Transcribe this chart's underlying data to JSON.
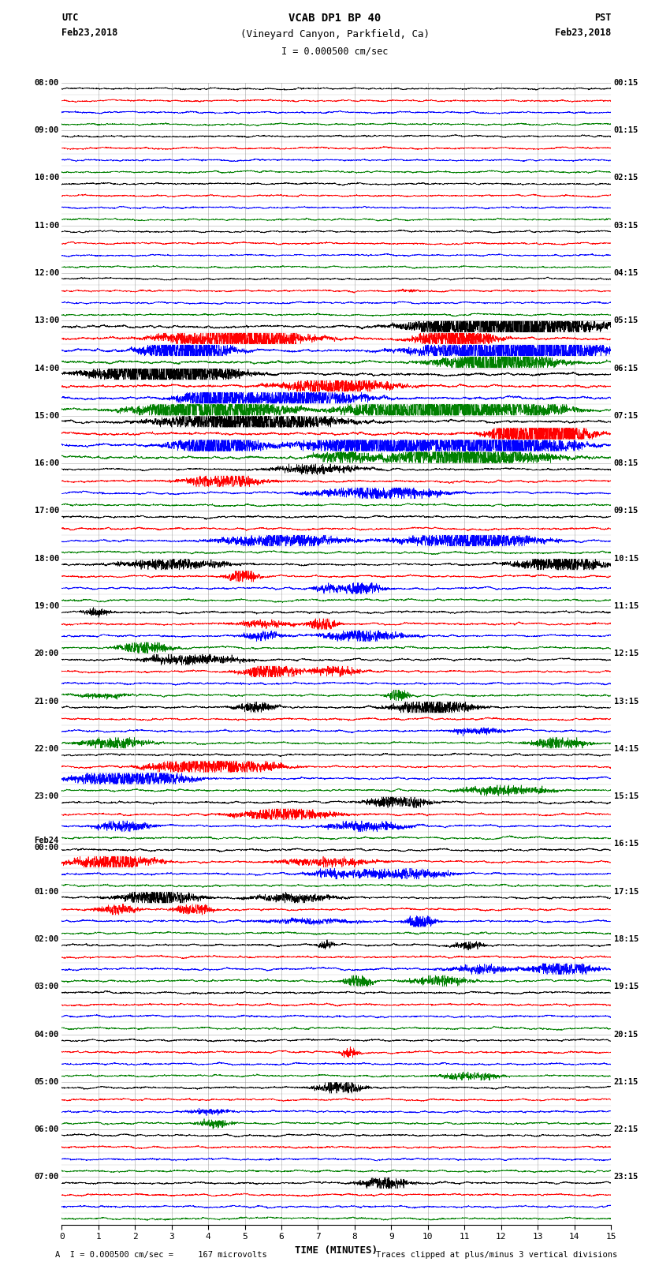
{
  "title1": "VCAB DP1 BP 40",
  "title2": "(Vineyard Canyon, Parkfield, Ca)",
  "scale_label": "I = 0.000500 cm/sec",
  "utc_label": "UTC",
  "pst_label": "PST",
  "date_left": "Feb23,2018",
  "date_right": "Feb23,2018",
  "xlabel": "TIME (MINUTES)",
  "bottom_left": "A  I = 0.000500 cm/sec =     167 microvolts",
  "bottom_right": "Traces clipped at plus/minus 3 vertical divisions",
  "x_min": 0,
  "x_max": 15,
  "colors": [
    "black",
    "red",
    "blue",
    "green"
  ],
  "bg_color": "#ffffff",
  "left_times_labels": [
    "08:00",
    "09:00",
    "10:00",
    "11:00",
    "12:00",
    "13:00",
    "14:00",
    "15:00",
    "16:00",
    "17:00",
    "18:00",
    "19:00",
    "20:00",
    "21:00",
    "22:00",
    "23:00",
    "Feb24\n00:00",
    "01:00",
    "02:00",
    "03:00",
    "04:00",
    "05:00",
    "06:00",
    "07:00"
  ],
  "right_times_labels": [
    "00:15",
    "01:15",
    "02:15",
    "03:15",
    "04:15",
    "05:15",
    "06:15",
    "07:15",
    "08:15",
    "09:15",
    "10:15",
    "11:15",
    "12:15",
    "13:15",
    "14:15",
    "15:15",
    "16:15",
    "17:15",
    "18:15",
    "19:15",
    "20:15",
    "21:15",
    "22:15",
    "23:15"
  ],
  "n_traces": 96,
  "n_hours": 24,
  "traces_per_hour": 4,
  "seed": 12345,
  "vertical_grid_lines": [
    1,
    2,
    3,
    4,
    5,
    6,
    7,
    8,
    9,
    10,
    11,
    12,
    13,
    14
  ],
  "grid_color": "#888888",
  "trace_linewidth": 0.5
}
